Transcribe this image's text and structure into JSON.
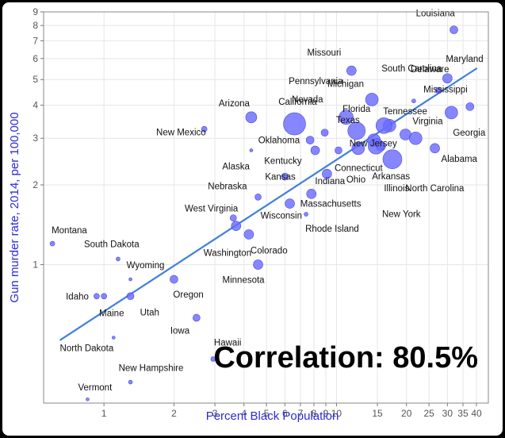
{
  "chart_data": {
    "type": "scatter",
    "xlabel": "Percent Black Population",
    "ylabel": "Gun murder rate, 2014, per 100,000",
    "annotation": "Correlation: 80.5%",
    "x_scale": "log",
    "y_scale": "log",
    "xlim": [
      0.55,
      45
    ],
    "ylim": [
      0.3,
      9
    ],
    "x_ticks": [
      1,
      2,
      3,
      4,
      5,
      6,
      7,
      8,
      9,
      10,
      15,
      20,
      25,
      30,
      35,
      40
    ],
    "y_ticks": [
      1,
      2,
      3,
      4,
      5,
      6,
      7,
      8,
      9
    ],
    "grid": true,
    "marker_color": "#6b6bff",
    "trend_color": "#3f7fd9",
    "trend_line": {
      "x": [
        0.65,
        40
      ],
      "y": [
        0.52,
        5.5
      ]
    },
    "points": [
      {
        "state": "Louisiana",
        "x": 32.0,
        "y": 7.7,
        "size": 5
      },
      {
        "state": "Missouri",
        "x": 11.6,
        "y": 5.4,
        "size": 6
      },
      {
        "state": "South Carolina",
        "x": 27.5,
        "y": 4.55,
        "size": 4
      },
      {
        "state": "Delaware",
        "x": 21.5,
        "y": 4.15,
        "size": 2.5
      },
      {
        "state": "Maryland",
        "x": 30.0,
        "y": 5.05,
        "size": 6
      },
      {
        "state": "Mississippi",
        "x": 37.5,
        "y": 3.95,
        "size": 5
      },
      {
        "state": "Pennsylvania",
        "x": 11.0,
        "y": 3.6,
        "size": 9
      },
      {
        "state": "Nevada",
        "x": 8.9,
        "y": 3.15,
        "size": 4.5
      },
      {
        "state": "Michigan",
        "x": 14.2,
        "y": 4.2,
        "size": 8
      },
      {
        "state": "Tennessee",
        "x": 16.9,
        "y": 3.35,
        "size": 8
      },
      {
        "state": "Arizona",
        "x": 4.3,
        "y": 3.6,
        "size": 7
      },
      {
        "state": "California",
        "x": 6.6,
        "y": 3.4,
        "size": 14
      },
      {
        "state": "Texas",
        "x": 12.2,
        "y": 3.2,
        "size": 11
      },
      {
        "state": "Florida",
        "x": 16.0,
        "y": 3.35,
        "size": 10
      },
      {
        "state": "Virginia",
        "x": 19.8,
        "y": 3.1,
        "size": 7
      },
      {
        "state": "Georgia",
        "x": 31.2,
        "y": 3.75,
        "size": 8
      },
      {
        "state": "New Mexico",
        "x": 2.7,
        "y": 3.25,
        "size": 3.5
      },
      {
        "state": "Oklahoma",
        "x": 7.7,
        "y": 2.95,
        "size": 5
      },
      {
        "state": "New Jersey",
        "x": 14.5,
        "y": 2.95,
        "size": 8
      },
      {
        "state": "Kentucky",
        "x": 8.1,
        "y": 2.7,
        "size": 5.5
      },
      {
        "state": "Connecticut",
        "x": 10.2,
        "y": 2.7,
        "size": 4.5
      },
      {
        "state": "Arkansas",
        "x": 15.5,
        "y": 2.8,
        "size": 6
      },
      {
        "state": "Alabama",
        "x": 26.5,
        "y": 2.75,
        "size": 6
      },
      {
        "state": "North Carolina",
        "x": 21.9,
        "y": 3.0,
        "size": 8
      },
      {
        "state": "Ohio",
        "x": 12.4,
        "y": 2.75,
        "size": 8
      },
      {
        "state": "Illinois",
        "x": 14.8,
        "y": 2.8,
        "size": 10
      },
      {
        "state": "New York",
        "x": 17.4,
        "y": 2.5,
        "size": 12
      },
      {
        "state": "Alaska",
        "x": 4.3,
        "y": 2.7,
        "size": 2
      },
      {
        "state": "Nebraska",
        "x": 4.6,
        "y": 1.8,
        "size": 4
      },
      {
        "state": "Kansas",
        "x": 6.0,
        "y": 2.15,
        "size": 4.5
      },
      {
        "state": "Indiana",
        "x": 9.1,
        "y": 2.2,
        "size": 6
      },
      {
        "state": "West Virginia",
        "x": 3.6,
        "y": 1.5,
        "size": 4
      },
      {
        "state": "Wisconsin",
        "x": 6.3,
        "y": 1.7,
        "size": 6
      },
      {
        "state": "Massachusetts",
        "x": 7.8,
        "y": 1.85,
        "size": 6
      },
      {
        "state": "Rhode Island",
        "x": 7.4,
        "y": 1.55,
        "size": 2.5
      },
      {
        "state": "Washington",
        "x": 3.7,
        "y": 1.4,
        "size": 6
      },
      {
        "state": "Colorado",
        "x": 4.2,
        "y": 1.3,
        "size": 6
      },
      {
        "state": "Montana",
        "x": 0.6,
        "y": 1.2,
        "size": 3
      },
      {
        "state": "South Dakota",
        "x": 1.15,
        "y": 1.05,
        "size": 2.5
      },
      {
        "state": "Wyoming",
        "x": 1.3,
        "y": 0.88,
        "size": 2
      },
      {
        "state": "Minnesota",
        "x": 4.6,
        "y": 1.0,
        "size": 6
      },
      {
        "state": "Oregon",
        "x": 2.0,
        "y": 0.88,
        "size": 5
      },
      {
        "state": "Idaho",
        "x": 0.93,
        "y": 0.76,
        "size": 3.5
      },
      {
        "state": "Maine",
        "x": 1.0,
        "y": 0.76,
        "size": 3.5
      },
      {
        "state": "Utah",
        "x": 1.3,
        "y": 0.76,
        "size": 4.5
      },
      {
        "state": "Iowa",
        "x": 2.5,
        "y": 0.63,
        "size": 4.5
      },
      {
        "state": "North Dakota",
        "x": 1.1,
        "y": 0.53,
        "size": 2
      },
      {
        "state": "Hawaii",
        "x": 2.95,
        "y": 0.44,
        "size": 3
      },
      {
        "state": "New Hampshire",
        "x": 1.3,
        "y": 0.36,
        "size": 2.5
      },
      {
        "state": "Vermont",
        "x": 0.85,
        "y": 0.31,
        "size": 2
      }
    ]
  }
}
